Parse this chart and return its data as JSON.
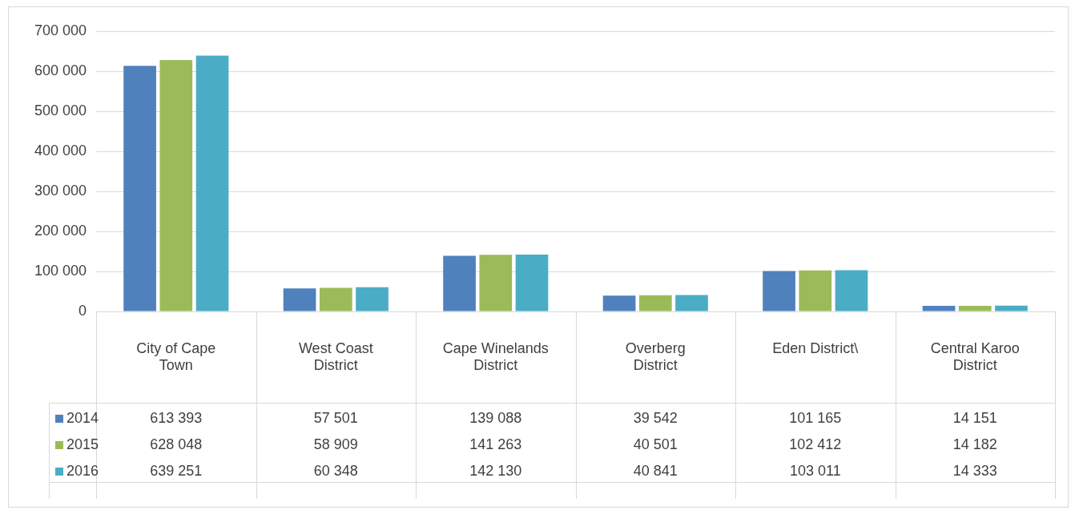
{
  "chart_data": {
    "type": "bar",
    "categories": [
      "City of Cape Town",
      "West Coast District",
      "Cape Winelands District",
      "Overberg District",
      "Eden District\\",
      "Central Karoo District"
    ],
    "series": [
      {
        "name": "2014",
        "color": "#4f81bd",
        "values": [
          613393,
          57501,
          139088,
          39542,
          101165,
          14151
        ],
        "value_labels": [
          "613 393",
          "57 501",
          "139 088",
          "39 542",
          "101 165",
          "14 151"
        ]
      },
      {
        "name": "2015",
        "color": "#9bbb59",
        "values": [
          628048,
          58909,
          141263,
          40501,
          102412,
          14182
        ],
        "value_labels": [
          "628 048",
          "58 909",
          "141 263",
          "40 501",
          "102 412",
          "14 182"
        ]
      },
      {
        "name": "2016",
        "color": "#4bacc6",
        "values": [
          639251,
          60348,
          142130,
          40841,
          103011,
          14333
        ],
        "value_labels": [
          "639 251",
          "60 348",
          "142 130",
          "40 841",
          "103 011",
          "14 333"
        ]
      }
    ],
    "ylim": [
      0,
      700000
    ],
    "yticks": [
      {
        "value": 0,
        "label": "0"
      },
      {
        "value": 100000,
        "label": "100 000"
      },
      {
        "value": 200000,
        "label": "200 000"
      },
      {
        "value": 300000,
        "label": "300 000"
      },
      {
        "value": 400000,
        "label": "400 000"
      },
      {
        "value": 500000,
        "label": "500 000"
      },
      {
        "value": 600000,
        "label": "600 000"
      },
      {
        "value": 700000,
        "label": "700 000"
      }
    ],
    "grid": "y",
    "legend": "bottom left"
  }
}
